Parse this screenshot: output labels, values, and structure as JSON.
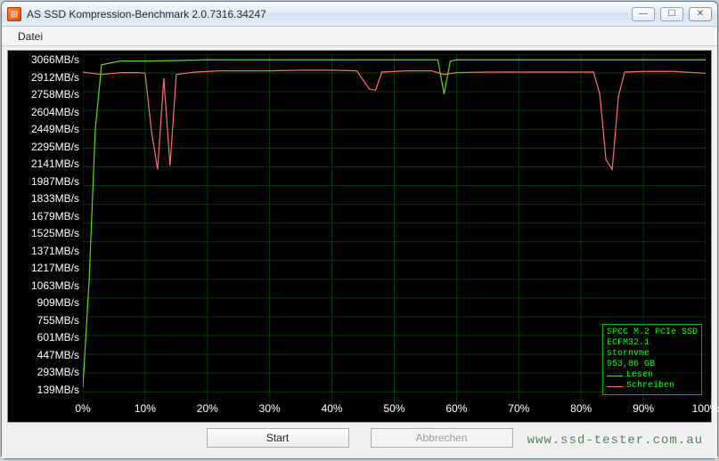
{
  "window": {
    "title": "AS SSD Kompression-Benchmark 2.0.7316.34247",
    "minimize_glyph": "—",
    "maximize_glyph": "☐",
    "close_glyph": "✕"
  },
  "menubar": {
    "items": [
      "Datei"
    ]
  },
  "chart": {
    "type": "line",
    "background_color": "#000000",
    "grid_color": "#003a00",
    "axis_label_color": "#ffffff",
    "y_unit": "MB/s",
    "y_values": [
      3066,
      2912,
      2758,
      2604,
      2449,
      2295,
      2141,
      1987,
      1833,
      1679,
      1525,
      1371,
      1217,
      1063,
      909,
      755,
      601,
      447,
      293,
      139
    ],
    "ylim": [
      139,
      3066
    ],
    "x_labels": [
      "0%",
      "10%",
      "20%",
      "30%",
      "40%",
      "50%",
      "60%",
      "70%",
      "80%",
      "90%",
      "100%"
    ],
    "x_positions_pct": [
      0,
      10,
      20,
      30,
      40,
      50,
      60,
      70,
      80,
      90,
      100
    ],
    "xlim": [
      0,
      100
    ],
    "series": {
      "lesen": {
        "label": "Lesen",
        "color": "#55dd00",
        "line_width": 1.2,
        "data": [
          [
            0,
            330
          ],
          [
            1,
            1200
          ],
          [
            2,
            2450
          ],
          [
            3,
            2980
          ],
          [
            4,
            2990
          ],
          [
            6,
            3010
          ],
          [
            10,
            3010
          ],
          [
            15,
            3015
          ],
          [
            20,
            3020
          ],
          [
            25,
            3020
          ],
          [
            30,
            3020
          ],
          [
            35,
            3020
          ],
          [
            40,
            3020
          ],
          [
            45,
            3020
          ],
          [
            50,
            3020
          ],
          [
            55,
            3020
          ],
          [
            57,
            3020
          ],
          [
            58,
            2740
          ],
          [
            59,
            3010
          ],
          [
            60,
            3020
          ],
          [
            65,
            3020
          ],
          [
            70,
            3020
          ],
          [
            75,
            3020
          ],
          [
            80,
            3020
          ],
          [
            85,
            3020
          ],
          [
            90,
            3020
          ],
          [
            95,
            3020
          ],
          [
            100,
            3020
          ]
        ]
      },
      "schreiben": {
        "label": "Schreiben",
        "color": "#ff6a6a",
        "line_width": 1.2,
        "data": [
          [
            0,
            2920
          ],
          [
            3,
            2900
          ],
          [
            6,
            2915
          ],
          [
            9,
            2915
          ],
          [
            10,
            2910
          ],
          [
            11,
            2440
          ],
          [
            12,
            2120
          ],
          [
            13,
            2870
          ],
          [
            14,
            2150
          ],
          [
            15,
            2900
          ],
          [
            18,
            2920
          ],
          [
            22,
            2930
          ],
          [
            26,
            2930
          ],
          [
            30,
            2930
          ],
          [
            35,
            2935
          ],
          [
            40,
            2935
          ],
          [
            44,
            2930
          ],
          [
            46,
            2780
          ],
          [
            47,
            2770
          ],
          [
            48,
            2920
          ],
          [
            52,
            2930
          ],
          [
            56,
            2930
          ],
          [
            58,
            2900
          ],
          [
            60,
            2915
          ],
          [
            65,
            2920
          ],
          [
            70,
            2920
          ],
          [
            75,
            2920
          ],
          [
            80,
            2920
          ],
          [
            82,
            2920
          ],
          [
            83,
            2740
          ],
          [
            84,
            2200
          ],
          [
            85,
            2120
          ],
          [
            86,
            2720
          ],
          [
            87,
            2920
          ],
          [
            90,
            2925
          ],
          [
            95,
            2925
          ],
          [
            100,
            2910
          ]
        ]
      }
    },
    "legend": {
      "border_color": "#00aa00",
      "text_color": "#00ff00",
      "device_line1": "SPCC M.2 PCIe SSD",
      "device_line2": "ECFM32.1",
      "driver": "stornvme",
      "capacity": "953,86 GB",
      "rows": [
        {
          "color": "#55dd00",
          "label": "Lesen"
        },
        {
          "color": "#ff6a6a",
          "label": "Schreiben"
        }
      ]
    },
    "label_fontsize": 12,
    "legend_fontsize": 10
  },
  "buttons": {
    "start": "Start",
    "cancel": "Abbrechen"
  },
  "watermark": "www.ssd-tester.com.au"
}
